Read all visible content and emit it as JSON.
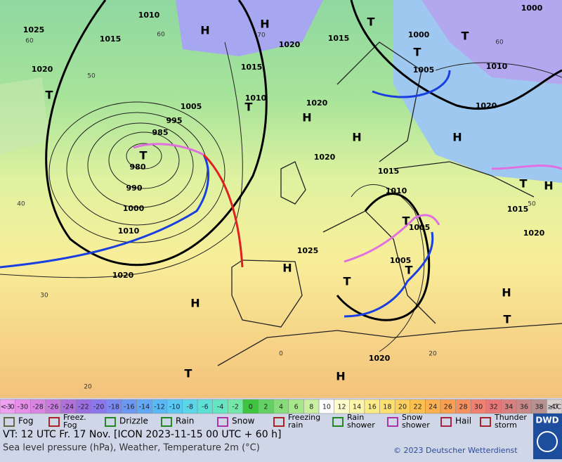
{
  "map": {
    "isobar_labels": [
      "1010",
      "1025",
      "1015",
      "1020",
      "1005",
      "995",
      "985",
      "980",
      "990",
      "1000",
      "1010",
      "1020",
      "1015",
      "1010",
      "1020",
      "1020",
      "1015",
      "1010",
      "1005",
      "1005",
      "1025",
      "1020",
      "1015",
      "1020",
      "1000",
      "1005",
      "1010",
      "1020",
      "1000",
      "1015",
      "1020"
    ],
    "pressure_centers": [
      "H",
      "H",
      "T",
      "T",
      "T",
      "T",
      "T",
      "H",
      "T",
      "H",
      "H",
      "T",
      "H",
      "T",
      "H",
      "T",
      "T",
      "H",
      "H",
      "T",
      "H",
      "T"
    ],
    "grid_labels": [
      "60",
      "50",
      "40",
      "30",
      "20",
      "70",
      "60",
      "60",
      "50",
      "20",
      "0"
    ]
  },
  "color_scale": {
    "labels": [
      "<-30",
      "-30",
      "-28",
      "-26",
      "-24",
      "-22",
      "-20",
      "-18",
      "-16",
      "-14",
      "-12",
      "-10",
      "-8",
      "-6",
      "-4",
      "-2",
      "0",
      "2",
      "4",
      "6",
      "8",
      "10",
      "12",
      "14",
      "16",
      "18",
      "20",
      "22",
      "24",
      "26",
      "28",
      "30",
      "32",
      "34",
      "36",
      "38",
      "≥40 °C"
    ]
  },
  "legend": [
    {
      "lines": [
        "Fog"
      ]
    },
    {
      "lines": [
        "Freez.",
        "Fog"
      ]
    },
    {
      "lines": [
        "Drizzle"
      ]
    },
    {
      "lines": [
        "Rain"
      ]
    },
    {
      "lines": [
        "Snow"
      ]
    },
    {
      "lines": [
        "Freezing",
        "rain"
      ]
    },
    {
      "lines": [
        "Rain",
        "shower"
      ]
    },
    {
      "lines": [
        "Snow",
        "shower"
      ]
    },
    {
      "lines": [
        "Hail"
      ]
    },
    {
      "lines": [
        "Thunder",
        "storm"
      ]
    }
  ],
  "footer": {
    "valid_time": "VT: 12 UTC Fr.  17 Nov. [ICON 2023-11-15  00 UTC + 60 h]",
    "description": "Sea level pressure (hPa), Weather, Temperature 2m (°C)",
    "copyright": "© 2023 Deutscher Wetterdienst",
    "logo": "DWD"
  }
}
